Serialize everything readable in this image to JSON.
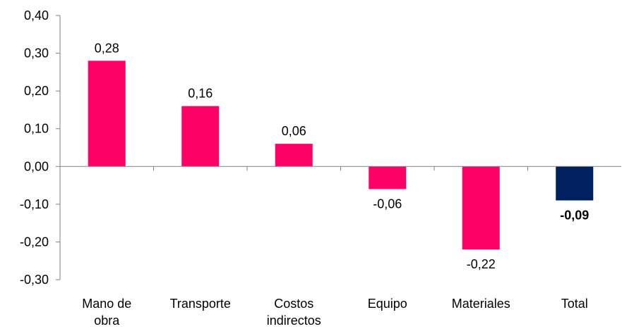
{
  "chart_data": {
    "type": "bar",
    "categories": [
      [
        "Mano de",
        "obra"
      ],
      [
        "Transporte"
      ],
      [
        "Costos",
        "indirectos"
      ],
      [
        "Equipo"
      ],
      [
        "Materiales"
      ],
      [
        "Total"
      ]
    ],
    "values": [
      0.28,
      0.16,
      0.06,
      -0.06,
      -0.22,
      -0.09
    ],
    "value_labels": [
      "0,28",
      "0,16",
      "0,06",
      "-0,06",
      "-0,22",
      "-0,09"
    ],
    "bold_labels": [
      false,
      false,
      false,
      false,
      false,
      true
    ],
    "bar_colors": [
      "#ff0066",
      "#ff0066",
      "#ff0066",
      "#ff0066",
      "#ff0066",
      "#002060"
    ],
    "ylim": [
      -0.3,
      0.4
    ],
    "y_ticks": [
      0.4,
      0.3,
      0.2,
      0.1,
      0.0,
      -0.1,
      -0.2,
      -0.3
    ],
    "y_tick_labels": [
      "0,40",
      "0,30",
      "0,20",
      "0,10",
      "0,00",
      "-0,10",
      "-0,20",
      "-0,30"
    ],
    "title": "",
    "xlabel": "",
    "ylabel": "",
    "grid": false,
    "legend": "none"
  }
}
